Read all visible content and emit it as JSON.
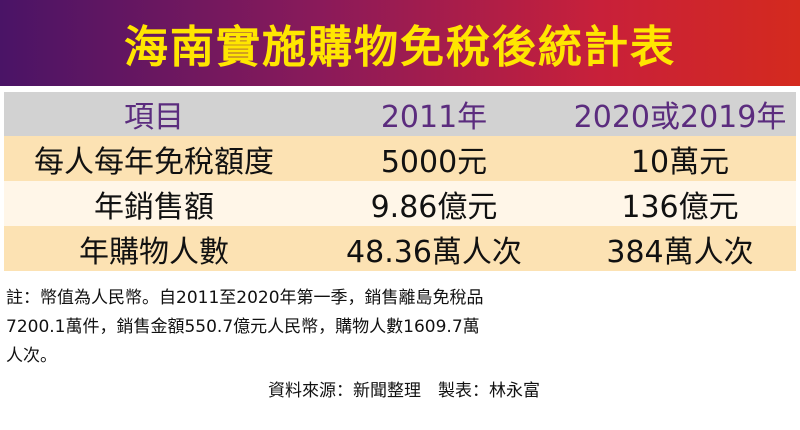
{
  "title": "海南實施購物免稅後統計表",
  "table": {
    "header": [
      "項目",
      "2011年",
      "2020或2019年"
    ],
    "rows": [
      [
        "每人每年免稅額度",
        "5000元",
        "10萬元"
      ],
      [
        "年銷售額",
        "9.86億元",
        "136億元"
      ],
      [
        "年購物人數",
        "48.36萬人次",
        "384萬人次"
      ]
    ]
  },
  "note": [
    "註：幣值為人民幣。自2011至2020年第一季，銷售離島免稅品",
    "7200.1萬件，銷售金額550.7億元人民幣，購物人數1609.7萬",
    "人次。"
  ],
  "source": "資料來源：新聞整理　製表：林永富"
}
